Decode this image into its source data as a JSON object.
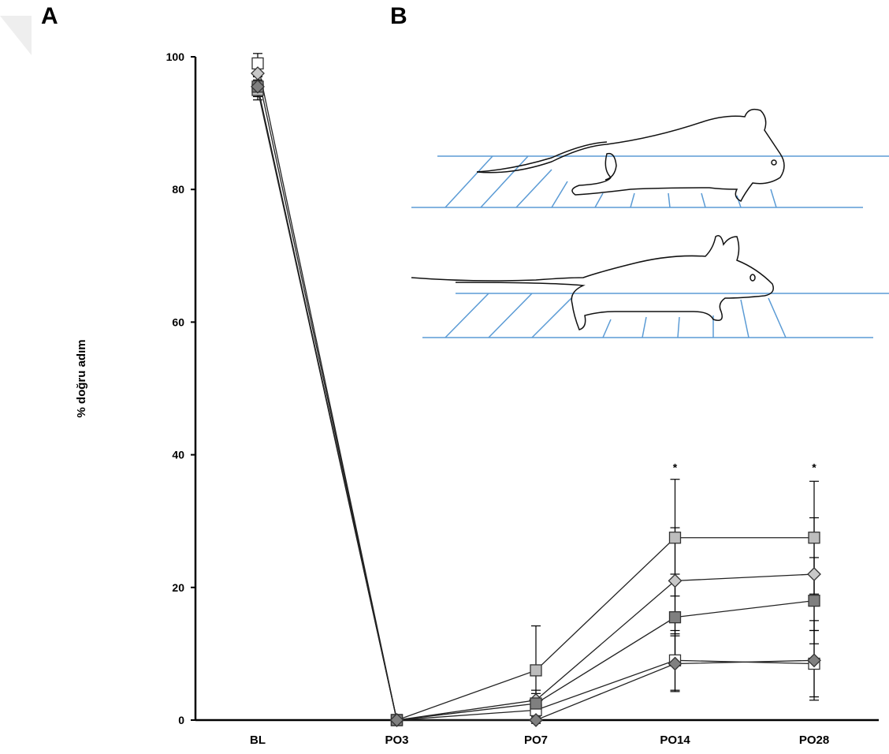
{
  "chart_data": {
    "type": "line",
    "panel_labels": [
      "A",
      "B"
    ],
    "ylabel": "% doğru adım",
    "categories": [
      "BL",
      "PO3",
      "PO7",
      "PO14",
      "PO28"
    ],
    "ylim": [
      0,
      100
    ],
    "yticks": [
      0,
      20,
      40,
      60,
      80,
      100
    ],
    "grid": false,
    "series": [
      {
        "color": "#ffffff",
        "marker": "square",
        "values": [
          99,
          0,
          1.5,
          9,
          8.5
        ],
        "errors": [
          1.5,
          0.5,
          1.5,
          4.5,
          5
        ]
      },
      {
        "color": "#c8c8c8",
        "marker": "diamond",
        "values": [
          97.5,
          0,
          3,
          21,
          22
        ],
        "errors": [
          1.5,
          0.5,
          1.5,
          8,
          8.5
        ]
      },
      {
        "color": "#bdbdbd",
        "marker": "square",
        "values": [
          95,
          0,
          7.5,
          27.5,
          27.5
        ],
        "errors": [
          1.5,
          0.5,
          6.7,
          8.8,
          8.5
        ]
      },
      {
        "color": "#7f7f7f",
        "marker": "square",
        "values": [
          95.5,
          0,
          2.5,
          15.5,
          18
        ],
        "errors": [
          1.5,
          0.5,
          1.5,
          6.5,
          6.5
        ]
      },
      {
        "color": "#808080",
        "marker": "diamond",
        "values": [
          95.5,
          0,
          0,
          8.5,
          9
        ],
        "errors": [
          1.5,
          0.5,
          0.5,
          4.2,
          6
        ]
      }
    ],
    "annotations": [
      {
        "text": "*",
        "category": "PO14",
        "y": 37.5
      },
      {
        "text": "*",
        "category": "PO28",
        "y": 37.5
      }
    ]
  }
}
